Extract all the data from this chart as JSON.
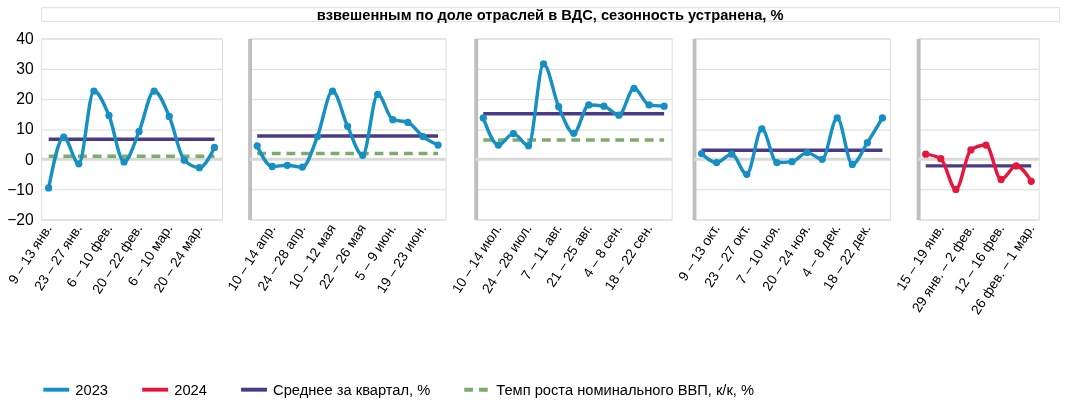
{
  "chart_data": [
    {
      "type": "other",
      "title": "взвешенным по доле отраслей в ВДС, сезонность устранена, %"
    },
    {
      "type": "line",
      "legend": "bottom",
      "grid": "y",
      "ylim": [
        -20,
        40
      ],
      "yticks": [
        -20,
        -10,
        0,
        10,
        20,
        30,
        40
      ],
      "categories": [
        "9 – 13 янв.",
        null,
        "23 – 27 янв.",
        null,
        "6 – 10 фев.",
        null,
        "20 – 22 фев.",
        null,
        "6 – 10 мар.",
        null,
        "20 – 24 мар.",
        null
      ],
      "ref_lines": [
        {
          "axis": "y",
          "value": 0,
          "color": "#d9d9d9"
        }
      ],
      "series": [
        {
          "name": "Темп роста номинального ВВП, к/к, %",
          "color": "#7dab6e",
          "line_style": "dashed",
          "marker": "none",
          "values": [
            1,
            1,
            1,
            1,
            1,
            1,
            1,
            1,
            1,
            1,
            1,
            1
          ]
        },
        {
          "name": "Среднее за квартал, %",
          "color": "#4b3a86",
          "marker": "none",
          "values": [
            6.6,
            6.6,
            6.6,
            6.6,
            6.6,
            6.6,
            6.6,
            6.6,
            6.6,
            6.6,
            6.6,
            6.6
          ]
        },
        {
          "name": "2023",
          "color": "#1690c2",
          "marker": "circle",
          "values": [
            -9.5,
            7.3,
            -1.5,
            22.6,
            14.5,
            -0.9,
            9.2,
            22.6,
            14.2,
            -0.3,
            -2.8,
            3.9
          ]
        }
      ]
    },
    {
      "type": "line",
      "legend": "bottom",
      "grid": "y",
      "ylim": [
        -20,
        40
      ],
      "yticks": [
        -20,
        -10,
        0,
        10,
        20,
        30,
        40
      ],
      "tick_labels": "x",
      "categories": [
        null,
        "10 – 14 апр.",
        null,
        "24 – 28 апр.",
        null,
        "10 – 12 мая",
        null,
        "22 – 26 мая",
        null,
        "5 – 9 июн.",
        null,
        "19 – 23 июн.",
        null
      ],
      "ref_lines": [
        {
          "axis": "y",
          "value": 0,
          "color": "#d9d9d9"
        }
      ],
      "series": [
        {
          "name": "Темп роста номинального ВВП, к/к, %",
          "color": "#7dab6e",
          "line_style": "dashed",
          "marker": "none",
          "values": [
            1.9,
            1.9,
            1.9,
            1.9,
            1.9,
            1.9,
            1.9,
            1.9,
            1.9,
            1.9,
            1.9,
            1.9,
            1.9
          ]
        },
        {
          "name": "Среднее за квартал, %",
          "color": "#4b3a86",
          "marker": "none",
          "values": [
            7.7,
            7.7,
            7.7,
            7.7,
            7.7,
            7.7,
            7.7,
            7.7,
            7.7,
            7.7,
            7.7,
            7.7,
            7.7
          ]
        },
        {
          "name": "2023",
          "color": "#1690c2",
          "marker": "circle",
          "values": [
            4.4,
            -2.4,
            -2,
            -2.6,
            7.5,
            22.6,
            10.9,
            1.3,
            21.5,
            13.1,
            12.2,
            7.5,
            4.7
          ]
        }
      ]
    },
    {
      "type": "line",
      "legend": "bottom",
      "grid": "y",
      "ylim": [
        -20,
        40
      ],
      "yticks": [
        -20,
        -10,
        0,
        10,
        20,
        30,
        40
      ],
      "tick_labels": "x",
      "categories": [
        null,
        "10 – 14 июл.",
        null,
        "24 – 28 июл.",
        null,
        "7 – 11 авг.",
        null,
        "21 – 25 авг.",
        null,
        "4 – 8 сен.",
        null,
        "18 – 22 сен.",
        null
      ],
      "ref_lines": [
        {
          "axis": "y",
          "value": 0,
          "color": "#d9d9d9"
        }
      ],
      "series": [
        {
          "name": "Темп роста номинального ВВП, к/к, %",
          "color": "#7dab6e",
          "line_style": "dashed",
          "marker": "none",
          "values": [
            6.4,
            6.4,
            6.4,
            6.4,
            6.4,
            6.4,
            6.4,
            6.4,
            6.4,
            6.4,
            6.4,
            6.4,
            6.4
          ]
        },
        {
          "name": "Среднее за квартал, %",
          "color": "#4b3a86",
          "marker": "none",
          "values": [
            15.1,
            15.1,
            15.1,
            15.1,
            15.1,
            15.1,
            15.1,
            15.1,
            15.1,
            15.1,
            15.1,
            15.1,
            15.1
          ]
        },
        {
          "name": "2023",
          "color": "#1690c2",
          "marker": "circle",
          "values": [
            13.7,
            4.7,
            8.5,
            4.5,
            31.6,
            17.4,
            8.6,
            18,
            17.6,
            14.6,
            23.5,
            18,
            17.6
          ]
        }
      ]
    },
    {
      "type": "line",
      "legend": "bottom",
      "grid": "y",
      "ylim": [
        -20,
        40
      ],
      "yticks": [
        -20,
        -10,
        0,
        10,
        20,
        30,
        40
      ],
      "tick_labels": "x",
      "categories": [
        null,
        "9 – 13 окт.",
        null,
        "23 – 27 окт.",
        null,
        "7 – 10 ноя.",
        null,
        "20 – 24 ноя.",
        null,
        "4 – 8 дек.",
        null,
        "18 – 22 дек.",
        null
      ],
      "ref_lines": [
        {
          "axis": "y",
          "value": 0,
          "color": "#d9d9d9"
        }
      ],
      "series": [
        {
          "name": "Среднее за квартал, %",
          "color": "#4b3a86",
          "marker": "none",
          "values": [
            3,
            3,
            3,
            3,
            3,
            3,
            3,
            3,
            3,
            3,
            3,
            3,
            3
          ]
        },
        {
          "name": "2023",
          "color": "#1690c2",
          "marker": "circle",
          "values": [
            1.9,
            -1.1,
            1.7,
            -5,
            10.1,
            -1.1,
            -0.8,
            2.2,
            0,
            13.7,
            -1.7,
            5.5,
            13.7
          ]
        }
      ]
    },
    {
      "type": "line",
      "legend": "bottom",
      "grid": "y",
      "ylim": [
        -20,
        40
      ],
      "yticks": [
        -20,
        -10,
        0,
        10,
        20,
        30,
        40
      ],
      "tick_labels": "x",
      "categories": [
        null,
        "15 – 19 янв.",
        null,
        "29 янв. – 2 фев.",
        null,
        "12 – 16 фев.",
        null,
        "26 фев. – 1 мар."
      ],
      "ref_lines": [
        {
          "axis": "y",
          "value": 0,
          "color": "#d9d9d9"
        }
      ],
      "series": [
        {
          "name": "Среднее за квартал, %",
          "color": "#4b3a86",
          "marker": "none",
          "values": [
            -2.2,
            -2.2,
            -2.2,
            -2.2,
            -2.2,
            -2.2,
            -2.2,
            -2.2
          ]
        },
        {
          "name": "2024",
          "color": "#e5173f",
          "marker": "circle",
          "values": [
            1.7,
            0.2,
            -10,
            3.1,
            4.7,
            -6.7,
            -2.2,
            -7.3
          ]
        }
      ]
    }
  ]
}
